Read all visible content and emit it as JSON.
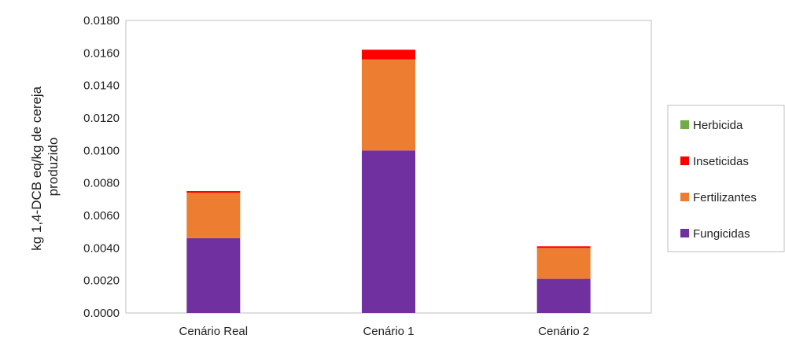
{
  "chart_data": {
    "type": "bar",
    "stacked": true,
    "categories": [
      "Cenário Real",
      "Cenário 1",
      "Cenário 2"
    ],
    "series": [
      {
        "name": "Fungicidas",
        "color": "#7030A0",
        "values": [
          0.0046,
          0.01,
          0.0021
        ]
      },
      {
        "name": "Fertilizantes",
        "color": "#ED7D31",
        "values": [
          0.0028,
          0.0056,
          0.0019
        ]
      },
      {
        "name": "Inseticidas",
        "color": "#FF0000",
        "values": [
          0.0001,
          0.0006,
          0.0001
        ]
      },
      {
        "name": "Herbicida",
        "color": "#70AD47",
        "values": [
          0.0,
          0.0,
          0.0
        ]
      }
    ],
    "ylabel_lines": [
      "kg 1,4-DCB eq/kg de cereja",
      "produzido"
    ],
    "ylim": [
      0,
      0.018
    ],
    "yticks": [
      "0.0000",
      "0.0020",
      "0.0040",
      "0.0060",
      "0.0080",
      "0.0100",
      "0.0120",
      "0.0140",
      "0.0160",
      "0.0180"
    ],
    "legend_order": [
      "Herbicida",
      "Inseticidas",
      "Fertilizantes",
      "Fungicidas"
    ],
    "legend_position": "right",
    "grid": false
  }
}
